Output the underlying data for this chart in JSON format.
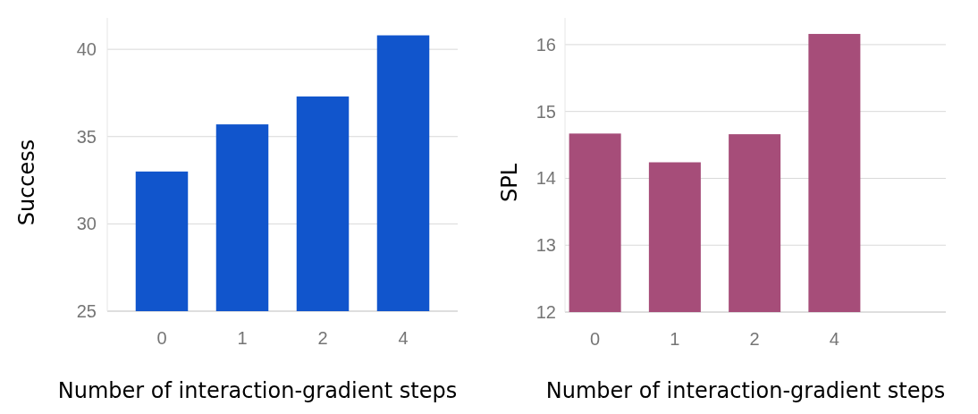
{
  "chart_data": [
    {
      "type": "bar",
      "xlabel": "Number of interaction-gradient steps",
      "ylabel": "Success",
      "categories": [
        "0",
        "1",
        "2",
        "4"
      ],
      "values": [
        33.0,
        35.7,
        37.3,
        40.8
      ],
      "color": "#1155cc",
      "ylim": [
        25,
        41.8
      ],
      "yticks": [
        25,
        30,
        35,
        40
      ],
      "grid": "y"
    },
    {
      "type": "bar",
      "xlabel": "Number of interaction-gradient steps",
      "ylabel": "SPL",
      "categories": [
        "0",
        "1",
        "2",
        "4"
      ],
      "values": [
        14.67,
        14.24,
        14.66,
        16.16
      ],
      "color": "#a64d79",
      "ylim": [
        12,
        16.4
      ],
      "yticks": [
        12,
        13,
        14,
        15,
        16
      ],
      "grid": "y"
    }
  ]
}
